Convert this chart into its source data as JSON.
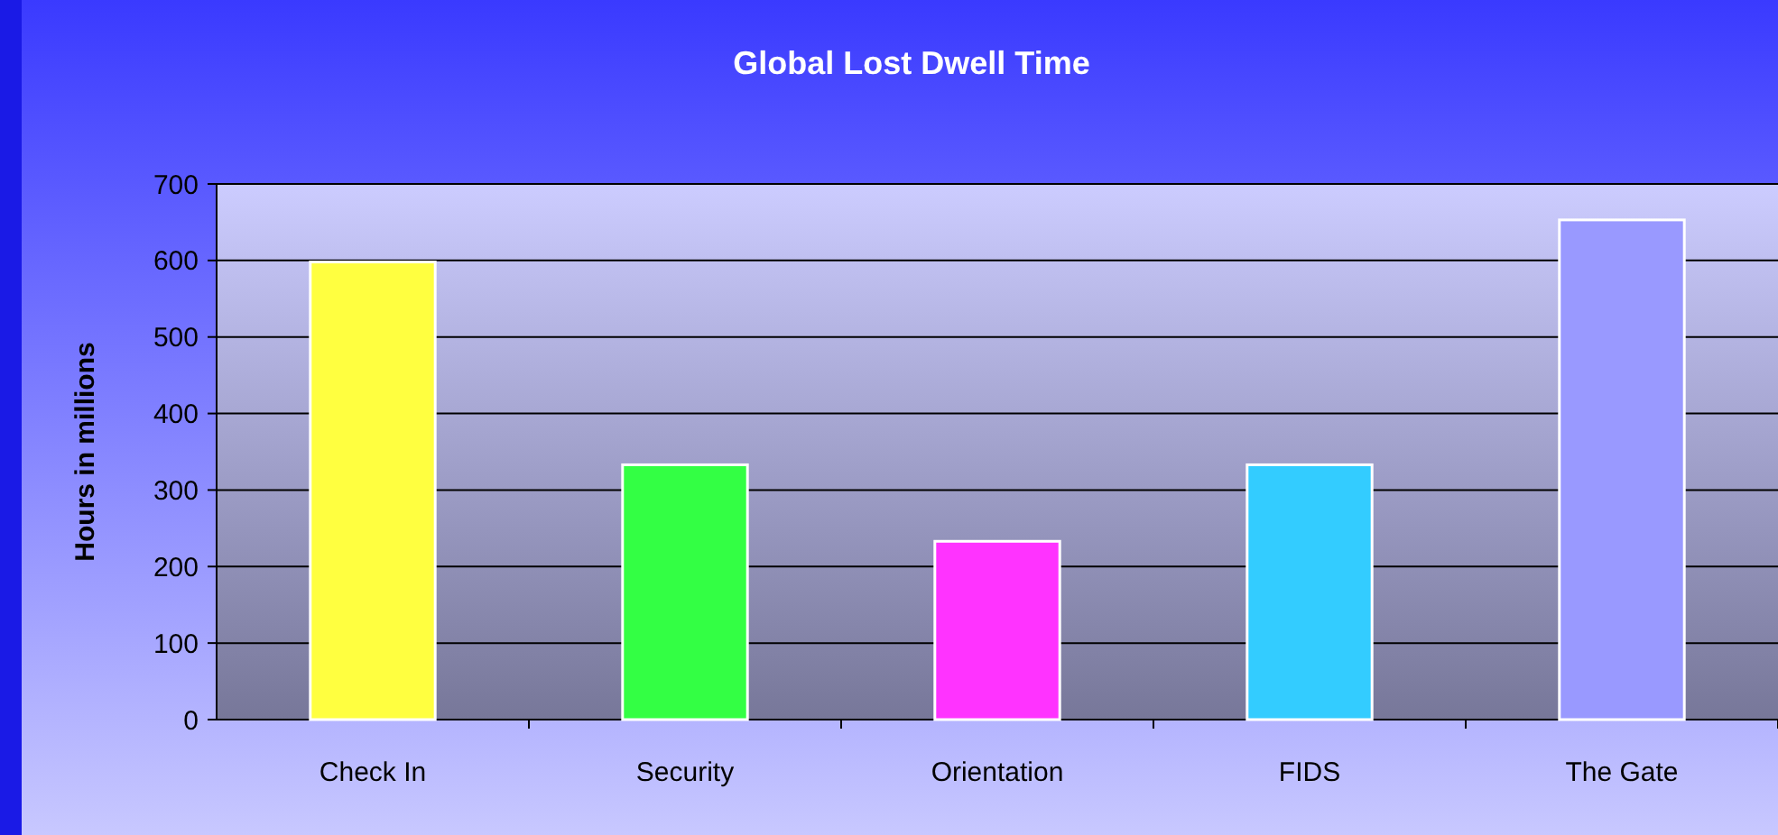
{
  "chart_data": {
    "type": "bar",
    "title": "Global Lost Dwell Time",
    "ylabel": "Hours in millions",
    "categories": [
      "Check In",
      "Security",
      "Orientation",
      "FIDS",
      "The Gate"
    ],
    "values": [
      598,
      333,
      233,
      333,
      653
    ],
    "colors": [
      "#ffff40",
      "#33ff44",
      "#ff33ff",
      "#33ccff",
      "#9999ff"
    ],
    "ylim": [
      0,
      700
    ],
    "yticks": [
      0,
      100,
      200,
      300,
      400,
      500,
      600,
      700
    ],
    "grid": "y"
  }
}
